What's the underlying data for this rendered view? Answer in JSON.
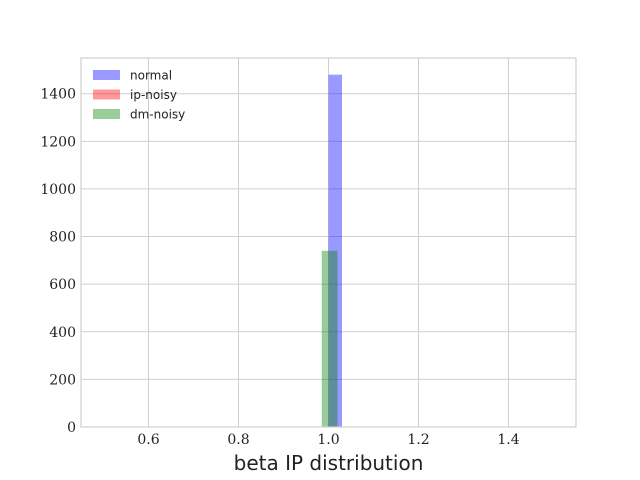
{
  "chart_data": {
    "type": "bar",
    "xlabel": "beta IP distribution",
    "ylabel": "",
    "xlim": [
      0.45,
      1.55
    ],
    "ylim": [
      0,
      1550
    ],
    "xticks": [
      0.6,
      0.8,
      1.0,
      1.2,
      1.4
    ],
    "xtick_labels": [
      "0.6",
      "0.8",
      "1.0",
      "1.2",
      "1.4"
    ],
    "yticks": [
      0,
      200,
      400,
      600,
      800,
      1000,
      1200,
      1400
    ],
    "ytick_labels": [
      "0",
      "200",
      "400",
      "600",
      "800",
      "1000",
      "1200",
      "1400"
    ],
    "grid": true,
    "legend_position": "top-left",
    "series": [
      {
        "name": "normal",
        "color": "#0000ff",
        "opacity": 0.4,
        "bins": [
          {
            "x0": 1.0,
            "x1": 1.03,
            "value": 1480
          }
        ]
      },
      {
        "name": "ip-noisy",
        "color": "#ff0000",
        "opacity": 0.4,
        "bins": []
      },
      {
        "name": "dm-noisy",
        "color": "#008000",
        "opacity": 0.4,
        "bins": [
          {
            "x0": 0.985,
            "x1": 1.02,
            "value": 740
          }
        ]
      }
    ]
  }
}
